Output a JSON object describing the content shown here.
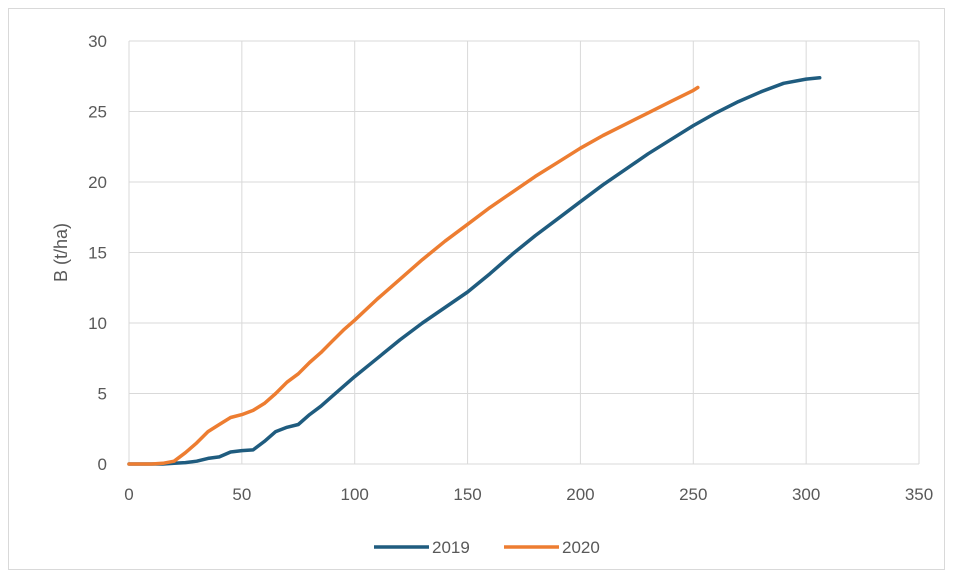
{
  "chart_data": {
    "type": "line",
    "title": "",
    "xlabel": "",
    "ylabel": "B (t/ha)",
    "xlim": [
      0,
      350
    ],
    "ylim": [
      0,
      30
    ],
    "xticks": [
      0,
      50,
      100,
      150,
      200,
      250,
      300,
      350
    ],
    "yticks": [
      0,
      5,
      10,
      15,
      20,
      25,
      30
    ],
    "grid": true,
    "legend": "bottom",
    "series": [
      {
        "name": "2019",
        "color": "#1f5c7f",
        "x": [
          0,
          5,
          10,
          15,
          20,
          25,
          30,
          35,
          40,
          45,
          50,
          55,
          60,
          65,
          70,
          75,
          80,
          85,
          90,
          95,
          100,
          110,
          120,
          130,
          140,
          150,
          160,
          170,
          180,
          190,
          200,
          210,
          220,
          230,
          240,
          250,
          260,
          270,
          280,
          290,
          300,
          306
        ],
        "y": [
          0,
          0,
          0,
          0,
          0.05,
          0.1,
          0.2,
          0.4,
          0.5,
          0.85,
          0.95,
          1.0,
          1.6,
          2.3,
          2.6,
          2.8,
          3.5,
          4.1,
          4.8,
          5.5,
          6.2,
          7.5,
          8.8,
          10.0,
          11.1,
          12.2,
          13.5,
          14.9,
          16.2,
          17.4,
          18.6,
          19.8,
          20.9,
          22.0,
          23.0,
          24.0,
          24.9,
          25.7,
          26.4,
          27.0,
          27.3,
          27.4
        ]
      },
      {
        "name": "2020",
        "color": "#ed7d31",
        "x": [
          0,
          5,
          10,
          15,
          20,
          25,
          30,
          35,
          40,
          45,
          50,
          55,
          60,
          65,
          70,
          75,
          80,
          85,
          90,
          95,
          100,
          110,
          120,
          130,
          140,
          150,
          160,
          170,
          180,
          190,
          200,
          210,
          220,
          230,
          240,
          250,
          252
        ],
        "y": [
          0,
          0,
          0,
          0.05,
          0.2,
          0.8,
          1.5,
          2.3,
          2.8,
          3.3,
          3.5,
          3.8,
          4.3,
          5.0,
          5.8,
          6.4,
          7.2,
          7.9,
          8.7,
          9.5,
          10.2,
          11.7,
          13.1,
          14.5,
          15.8,
          17.0,
          18.2,
          19.3,
          20.4,
          21.4,
          22.4,
          23.3,
          24.1,
          24.9,
          25.7,
          26.5,
          26.7
        ]
      }
    ]
  }
}
